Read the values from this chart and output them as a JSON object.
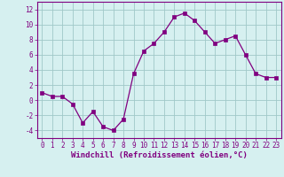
{
  "x": [
    0,
    1,
    2,
    3,
    4,
    5,
    6,
    7,
    8,
    9,
    10,
    11,
    12,
    13,
    14,
    15,
    16,
    17,
    18,
    19,
    20,
    21,
    22,
    23
  ],
  "y": [
    1,
    0.5,
    0.5,
    -0.5,
    -3,
    -1.5,
    -3.5,
    -4,
    -2.5,
    3.5,
    6.5,
    7.5,
    9,
    11,
    11.5,
    10.5,
    9,
    7.5,
    8,
    8.5,
    6,
    3.5,
    3,
    3
  ],
  "line_color": "#800080",
  "marker": "s",
  "marker_size": 2.5,
  "bg_color": "#d6f0f0",
  "grid_color": "#a0c8c8",
  "xlabel": "Windchill (Refroidissement éolien,°C)",
  "xlabel_fontsize": 6.5,
  "ylabel_ticks": [
    -4,
    -2,
    0,
    2,
    4,
    6,
    8,
    10,
    12
  ],
  "xlim": [
    -0.5,
    23.5
  ],
  "ylim": [
    -5,
    13
  ],
  "xtick_labels": [
    "0",
    "1",
    "2",
    "3",
    "4",
    "5",
    "6",
    "7",
    "8",
    "9",
    "10",
    "11",
    "12",
    "13",
    "14",
    "15",
    "16",
    "17",
    "18",
    "19",
    "20",
    "21",
    "22",
    "23"
  ],
  "tick_fontsize": 5.5,
  "border_color": "#800080",
  "spine_color": "#800080"
}
